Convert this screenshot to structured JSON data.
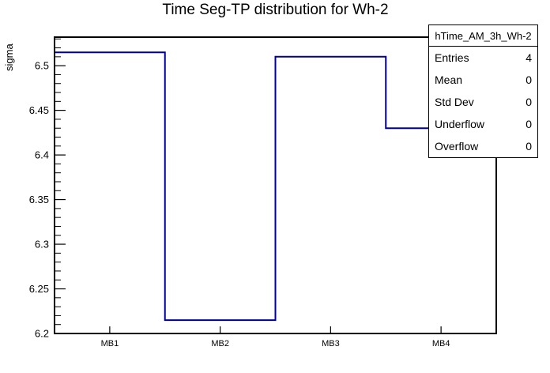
{
  "chart_data": {
    "type": "bar",
    "subtype": "step-outline-histogram",
    "title": "Time Seg-TP distribution for Wh-2",
    "xlabel": "",
    "ylabel": "sigma",
    "categories": [
      "MB1",
      "MB2",
      "MB3",
      "MB4"
    ],
    "values": [
      6.515,
      6.215,
      6.51,
      6.43
    ],
    "ylim": [
      6.2,
      6.532
    ],
    "y_major_ticks": [
      6.2,
      6.25,
      6.3,
      6.35,
      6.4,
      6.45,
      6.5
    ],
    "y_minor_step": 0.01,
    "grid": "off",
    "legend_position": "top-right",
    "line_color": "#000099",
    "axis_color": "#000000",
    "background_color": "#ffffff"
  },
  "stats_box": {
    "header": "hTime_AM_3h_Wh-2",
    "rows": [
      {
        "label": "Entries",
        "value": "4"
      },
      {
        "label": "Mean",
        "value": "0"
      },
      {
        "label": "Std Dev",
        "value": "0"
      },
      {
        "label": "Underflow",
        "value": "0"
      },
      {
        "label": "Overflow",
        "value": "0"
      }
    ]
  }
}
